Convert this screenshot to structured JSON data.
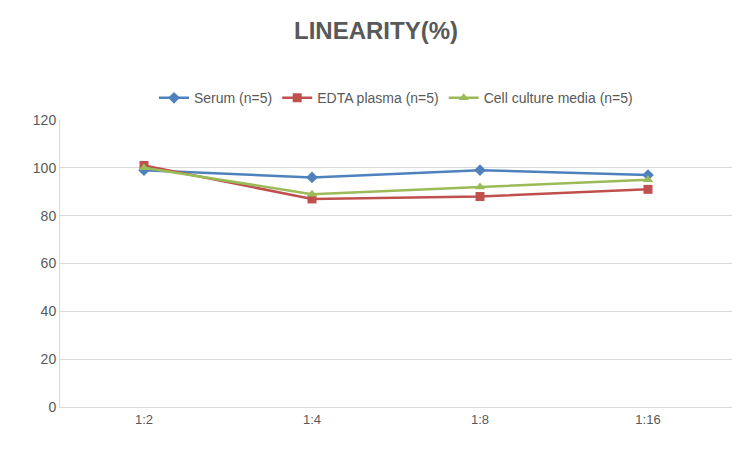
{
  "chart_data": {
    "type": "line",
    "title": "LINEARITY(%)",
    "categories": [
      "1:2",
      "1:4",
      "1:8",
      "1:16"
    ],
    "series": [
      {
        "name": "Serum (n=5)",
        "color": "#4f81bd",
        "marker": "diamond",
        "values": [
          99,
          96,
          99,
          97
        ]
      },
      {
        "name": "EDTA plasma (n=5)",
        "color": "#c0504d",
        "marker": "square",
        "values": [
          101,
          87,
          88,
          91
        ]
      },
      {
        "name": "Cell culture media (n=5)",
        "color": "#9bbb59",
        "marker": "triangle-up",
        "values": [
          100,
          89,
          92,
          95
        ]
      }
    ],
    "ylim": [
      0,
      120
    ],
    "yticks": [
      0,
      20,
      40,
      60,
      80,
      100,
      120
    ],
    "grid": true,
    "legend": "top"
  }
}
